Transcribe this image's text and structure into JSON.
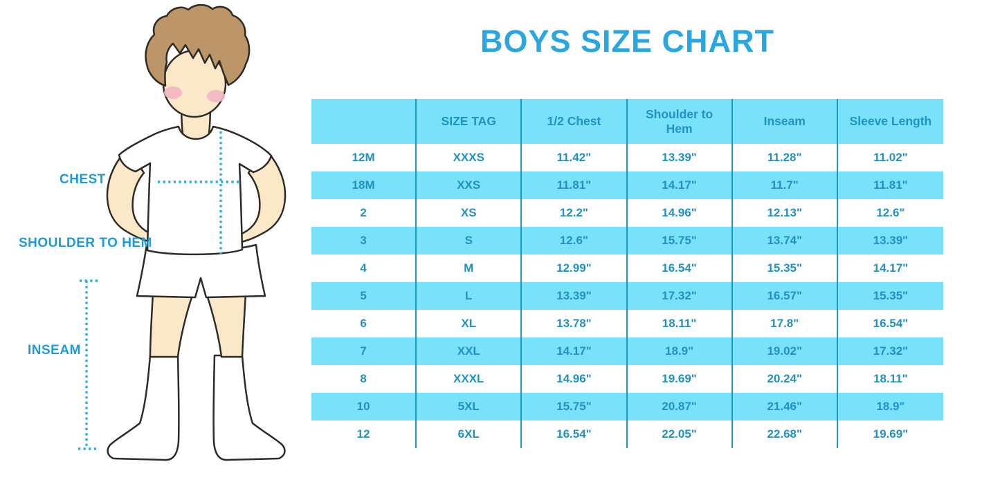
{
  "title": "BOYS SIZE CHART",
  "figure": {
    "labels": {
      "chest": "CHEST",
      "shoulder_to_hem": "SHOULDER TO HEM",
      "inseam": "INSEAM"
    }
  },
  "colors": {
    "title_blue": "#2BA6DF",
    "label_blue": "#1D9ADB",
    "dotted_line_blue": "#29ABE2",
    "table_cyan": "#79E2FA",
    "table_text_blue": "#2191C4",
    "table_grid_blue": "#1F97C9",
    "skin": "#FAE8C8",
    "hair": "#BC9569",
    "blush": "#F3B6C3",
    "garment": "#FFFFFF"
  },
  "chart_data": {
    "type": "table",
    "title": "BOYS SIZE CHART",
    "columns": [
      "",
      "SIZE TAG",
      "1/2 Chest",
      "Shoulder to Hem",
      "Inseam",
      "Sleeve Length"
    ],
    "rows": [
      [
        "12M",
        "XXXS",
        "11.42\"",
        "13.39\"",
        "11.28\"",
        "11.02\""
      ],
      [
        "18M",
        "XXS",
        "11.81\"",
        "14.17\"",
        "11.7\"",
        "11.81\""
      ],
      [
        "2",
        "XS",
        "12.2\"",
        "14.96\"",
        "12.13\"",
        "12.6\""
      ],
      [
        "3",
        "S",
        "12.6\"",
        "15.75\"",
        "13.74\"",
        "13.39\""
      ],
      [
        "4",
        "M",
        "12.99\"",
        "16.54\"",
        "15.35\"",
        "14.17\""
      ],
      [
        "5",
        "L",
        "13.39\"",
        "17.32\"",
        "16.57\"",
        "15.35\""
      ],
      [
        "6",
        "XL",
        "13.78\"",
        "18.11\"",
        "17.8\"",
        "16.54\""
      ],
      [
        "7",
        "XXL",
        "14.17\"",
        "18.9\"",
        "19.02\"",
        "17.32\""
      ],
      [
        "8",
        "XXXL",
        "14.96\"",
        "19.69\"",
        "20.24\"",
        "18.11\""
      ],
      [
        "10",
        "5XL",
        "15.75\"",
        "20.87\"",
        "21.46\"",
        "18.9\""
      ],
      [
        "12",
        "6XL",
        "16.54\"",
        "22.05\"",
        "22.68\"",
        "19.69\""
      ]
    ],
    "layout": {
      "header_background": "cyan",
      "row_striping": "white / cyan alternating starting white",
      "grid": "vertical separators only, no horizontal lines"
    }
  }
}
